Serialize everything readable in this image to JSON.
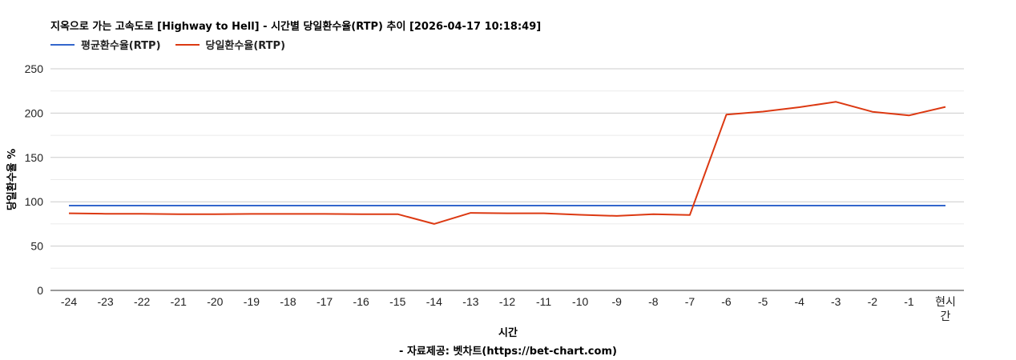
{
  "chart": {
    "title": "지옥으로 가는 고속도로 [Highway to Hell] - 시간별 당일환수율(RTP) 추이 [2026-04-17 10:18:49]",
    "legend": [
      {
        "label": "평균환수율(RTP)",
        "color": "#3366cc"
      },
      {
        "label": "당일환수율(RTP)",
        "color": "#dc3912"
      }
    ],
    "xlabel": "시간",
    "ylabel": "당일환수율 %",
    "credit": "- 자료제공: 벳차트(https://bet-chart.com)"
  },
  "chart_data": {
    "type": "line",
    "title": "지옥으로 가는 고속도로 [Highway to Hell] - 시간별 당일환수율(RTP) 추이 [2026-04-17 10:18:49]",
    "xlabel": "시간",
    "ylabel": "당일환수율 %",
    "ylim": [
      0,
      250
    ],
    "yticks": [
      0,
      50,
      100,
      150,
      200,
      250
    ],
    "grid": true,
    "legend_position": "top",
    "categories": [
      "-24",
      "-23",
      "-22",
      "-21",
      "-20",
      "-19",
      "-18",
      "-17",
      "-16",
      "-15",
      "-14",
      "-13",
      "-12",
      "-11",
      "-10",
      "-9",
      "-8",
      "-7",
      "-6",
      "-5",
      "-4",
      "-3",
      "-2",
      "-1",
      "현시간"
    ],
    "series": [
      {
        "name": "평균환수율(RTP)",
        "color": "#3366cc",
        "values": [
          95.7,
          95.7,
          95.7,
          95.7,
          95.7,
          95.7,
          95.7,
          95.7,
          95.7,
          95.7,
          95.7,
          95.7,
          95.7,
          95.7,
          95.7,
          95.7,
          95.7,
          95.7,
          95.7,
          95.7,
          95.7,
          95.7,
          95.7,
          95.7,
          95.7
        ]
      },
      {
        "name": "당일환수율(RTP)",
        "color": "#dc3912",
        "values": [
          87,
          86.5,
          86.5,
          86,
          86,
          86.3,
          86.3,
          86.3,
          86,
          86,
          75,
          87.5,
          87,
          87,
          85.3,
          84,
          86,
          85,
          198.3,
          201.7,
          206.7,
          212.7,
          201.5,
          197.4,
          207
        ]
      }
    ],
    "annotation": "- 자료제공: 벳차트(https://bet-chart.com)"
  }
}
